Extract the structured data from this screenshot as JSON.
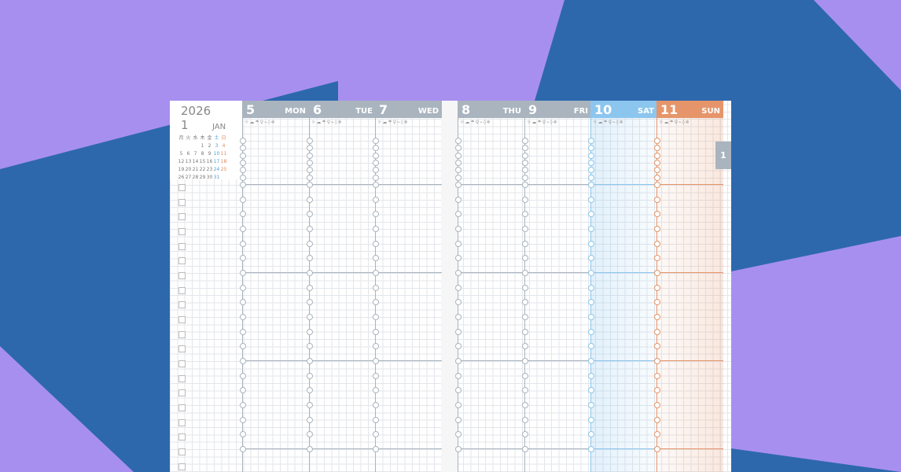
{
  "colors": {
    "background": "#a78ff0",
    "shape": "#2d68ad",
    "header_gray": "#a9b4be",
    "saturday": "#8cc6ef",
    "sunday": "#e6956a"
  },
  "mini_calendar": {
    "year": "2026",
    "month_number": "1",
    "month_name": "JAN",
    "weekdays": [
      "月",
      "火",
      "水",
      "木",
      "金",
      "土",
      "日"
    ],
    "weeks": [
      [
        "",
        "",
        "",
        "1",
        "2",
        "3",
        "4"
      ],
      [
        "5",
        "6",
        "7",
        "8",
        "9",
        "10",
        "11"
      ],
      [
        "12",
        "13",
        "14",
        "15",
        "16",
        "17",
        "18"
      ],
      [
        "19",
        "20",
        "21",
        "22",
        "23",
        "24",
        "25"
      ],
      [
        "26",
        "27",
        "28",
        "29",
        "30",
        "31",
        ""
      ]
    ],
    "week_marker": "2"
  },
  "weather_icons": "☼☁☂♀⌁◊❄",
  "days": [
    {
      "num": "5",
      "name": "MON"
    },
    {
      "num": "6",
      "name": "TUE"
    },
    {
      "num": "7",
      "name": "WED"
    },
    {
      "num": "8",
      "name": "THU"
    },
    {
      "num": "9",
      "name": "FRI"
    },
    {
      "num": "10",
      "name": "SAT"
    },
    {
      "num": "11",
      "name": "SUN"
    }
  ],
  "month_tab": "1"
}
